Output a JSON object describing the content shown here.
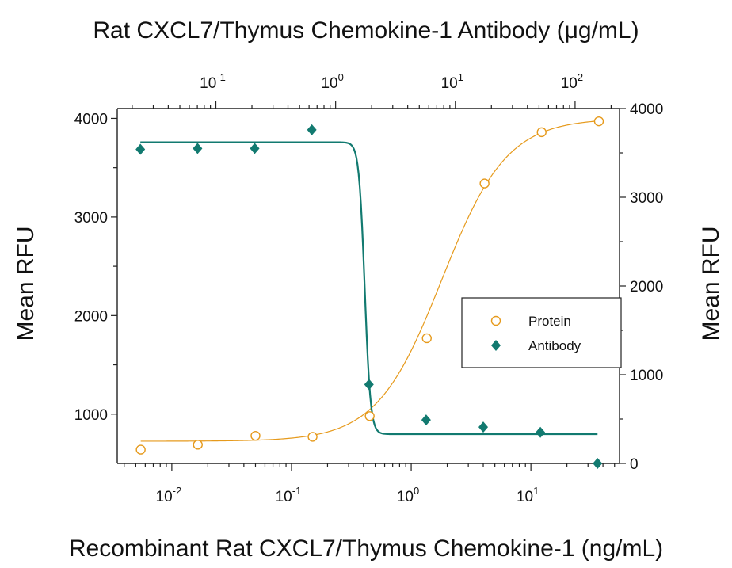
{
  "chart_data": {
    "type": "scatter",
    "title": "Rat CXCL7/Thymus Chemokine-1 Antibody (μg/mL)",
    "xlabel": "Recombinant Rat CXCL7/Thymus Chemokine-1 (ng/mL)",
    "ylabel_left": "Mean RFU",
    "ylabel_right": "Mean RFU",
    "x_scale": "log",
    "x_range": [
      0.0035,
      55
    ],
    "x_ticks": [
      {
        "value": 0.01,
        "base": "10",
        "exp": "-2"
      },
      {
        "value": 0.1,
        "base": "10",
        "exp": "-1"
      },
      {
        "value": 1,
        "base": "10",
        "exp": "0"
      },
      {
        "value": 10,
        "base": "10",
        "exp": "1"
      }
    ],
    "x2_scale": "log",
    "x2_range": [
      0.015,
      235
    ],
    "x2_ticks": [
      {
        "value": 0.1,
        "base": "10",
        "exp": "-1"
      },
      {
        "value": 1,
        "base": "10",
        "exp": "0"
      },
      {
        "value": 10,
        "base": "10",
        "exp": "1"
      },
      {
        "value": 100,
        "base": "10",
        "exp": "2"
      }
    ],
    "y_left_range": [
      500,
      4100
    ],
    "y_left_ticks": [
      "1000",
      "2000",
      "3000",
      "4000"
    ],
    "y_right_range": [
      0,
      4000
    ],
    "y_right_ticks": [
      "0",
      "1000",
      "2000",
      "3000",
      "4000"
    ],
    "grid": false,
    "legend_position": "center-right",
    "series": [
      {
        "name": "Protein",
        "marker": "open-circle",
        "color": "#e69a1c",
        "axis": "bottom-left",
        "x": [
          0.0055,
          0.0165,
          0.05,
          0.15,
          0.45,
          1.35,
          4.1,
          12.3,
          37
        ],
        "y": [
          640,
          690,
          780,
          770,
          980,
          1770,
          3340,
          3860,
          3970
        ],
        "fit": {
          "bottom": 725,
          "top": 4000,
          "ec50": 1.8,
          "hill": 1.6
        }
      },
      {
        "name": "Antibody",
        "marker": "filled-diamond",
        "color": "#127a70",
        "axis": "top-right",
        "x": [
          0.0234,
          0.0703,
          0.211,
          0.633,
          1.9,
          5.7,
          17.1,
          51.3,
          154
        ],
        "y": [
          3540,
          3550,
          3550,
          3760,
          890,
          490,
          410,
          350,
          0
        ],
        "fit": {
          "bottom": 330,
          "top": 3620,
          "ic50": 1.75,
          "hill": 18
        }
      }
    ]
  }
}
